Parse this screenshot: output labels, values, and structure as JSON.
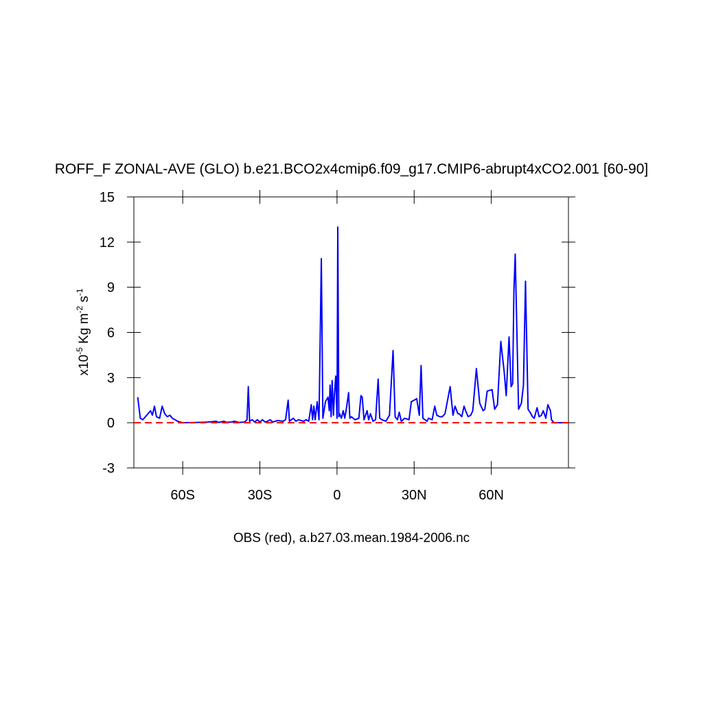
{
  "chart_data": {
    "type": "line",
    "title": "ROFF_F ZONAL-AVE (GLO) b.e21.BCO2x4cmip6.f09_g17.CMIP6-abrupt4xCO2.001 [60-90]",
    "subtitle": "OBS (red), a.b27.03.mean.1984-2006.nc",
    "ylabel": [
      "x10",
      "-5",
      " Kg m",
      "-2",
      " s",
      "-1"
    ],
    "xlim": [
      -79,
      90
    ],
    "xticks": [
      {
        "value": -60,
        "label": "60S"
      },
      {
        "value": -30,
        "label": "30S"
      },
      {
        "value": 0,
        "label": "0"
      },
      {
        "value": 30,
        "label": "30N"
      },
      {
        "value": 60,
        "label": "60N"
      }
    ],
    "ylim": [
      -3,
      15
    ],
    "yticks": [
      -3,
      0,
      3,
      6,
      9,
      12,
      15
    ],
    "series": [
      {
        "color": "#0000ff",
        "dashed": false,
        "x": [
          -77.5,
          -76.5,
          -75.5,
          -74.5,
          -73.5,
          -72.5,
          -71.8,
          -71,
          -70.2,
          -69,
          -68,
          -67,
          -66,
          -65,
          -64,
          -63,
          -62,
          -61,
          -60,
          -55,
          -50,
          -47,
          -46,
          -44,
          -43,
          -41,
          -40,
          -38,
          -36,
          -35,
          -34.5,
          -34,
          -33,
          -32,
          -31,
          -30,
          -29,
          -28,
          -27,
          -26,
          -25,
          -23,
          -21,
          -20,
          -19,
          -18.5,
          -17,
          -16,
          -15,
          -13,
          -12,
          -11,
          -10,
          -9.5,
          -9,
          -8.5,
          -7.7,
          -7,
          -6.1,
          -5.5,
          -4.5,
          -3.5,
          -3,
          -2.7,
          -2.3,
          -1.9,
          -1.4,
          -1,
          -0.5,
          0,
          0.3,
          0.7,
          1,
          1.7,
          2.4,
          3,
          3.7,
          4.5,
          5,
          5.6,
          7,
          8.5,
          9.3,
          9.8,
          10.5,
          11.7,
          12.3,
          13,
          14,
          15,
          16,
          16.6,
          17.5,
          19,
          20.4,
          21.8,
          22.6,
          23.5,
          24.2,
          25,
          26.3,
          28,
          28.9,
          30,
          31,
          32,
          32.7,
          33.4,
          35,
          35.6,
          37,
          38,
          38.8,
          40,
          40.9,
          42,
          44,
          45.1,
          45.9,
          47,
          47.5,
          48.5,
          49.4,
          50,
          51,
          52,
          52.8,
          54.2,
          55.5,
          56.8,
          57.5,
          58.4,
          60.3,
          61.3,
          62.4,
          63.7,
          65,
          65.8,
          66.9,
          67.7,
          68.3,
          68.8,
          69.3,
          70.6,
          71.7,
          72.5,
          73.3,
          74.3,
          75.4,
          76,
          76.7,
          77.8,
          78.6,
          79.5,
          80.2,
          81.2,
          82,
          83,
          83.4,
          84.4,
          86,
          89.5
        ],
        "values": [
          1.7,
          0.3,
          0.2,
          0.4,
          0.6,
          0.8,
          0.5,
          1.1,
          0.4,
          0.3,
          1.1,
          0.6,
          0.4,
          0.5,
          0.3,
          0.2,
          0.1,
          0.05,
          0,
          0.02,
          0.05,
          0.1,
          0.02,
          0.1,
          0.03,
          0.05,
          0.1,
          0.02,
          0.05,
          0.2,
          2.4,
          0.1,
          0.2,
          0.05,
          0.2,
          0.05,
          0.2,
          0.05,
          0.1,
          0.2,
          0.05,
          0.15,
          0.1,
          0.2,
          1.5,
          0.1,
          0.3,
          0.1,
          0.2,
          0.1,
          0.2,
          0.1,
          1.2,
          0.2,
          1.1,
          0.2,
          1.4,
          0.2,
          10.9,
          0.3,
          1.4,
          1.7,
          0.8,
          2.5,
          0.4,
          2.8,
          0.5,
          1.9,
          3.1,
          0.3,
          13.0,
          0.4,
          0.6,
          0.3,
          0.8,
          0.3,
          1.0,
          2.0,
          0.3,
          0.4,
          0.2,
          0.3,
          1.8,
          1.7,
          0.2,
          0.8,
          0.2,
          0.6,
          0.1,
          0.2,
          2.9,
          0.3,
          0.2,
          0.1,
          0.5,
          4.8,
          0.4,
          0.2,
          0.7,
          0.1,
          0.3,
          0.2,
          1.4,
          1.5,
          1.6,
          0.5,
          3.8,
          0.3,
          0.1,
          0.3,
          0.2,
          1.1,
          0.5,
          0.4,
          0.4,
          0.6,
          2.4,
          0.5,
          1.1,
          0.6,
          0.6,
          0.4,
          1.1,
          0.8,
          0.4,
          0.5,
          0.8,
          3.6,
          1.3,
          0.8,
          0.9,
          2.1,
          2.2,
          0.9,
          1.2,
          5.4,
          3.4,
          1.8,
          5.7,
          2.4,
          2.6,
          8.8,
          11.2,
          0.9,
          1.3,
          2.5,
          9.4,
          0.9,
          0.6,
          0.4,
          0.3,
          1.0,
          0.4,
          0.5,
          0.8,
          0.3,
          1.2,
          0.8,
          0.2,
          0,
          0,
          0
        ]
      },
      {
        "color": "#ff0000",
        "dashed": true,
        "x": [
          -79,
          90
        ],
        "values": [
          0,
          0
        ]
      }
    ]
  }
}
